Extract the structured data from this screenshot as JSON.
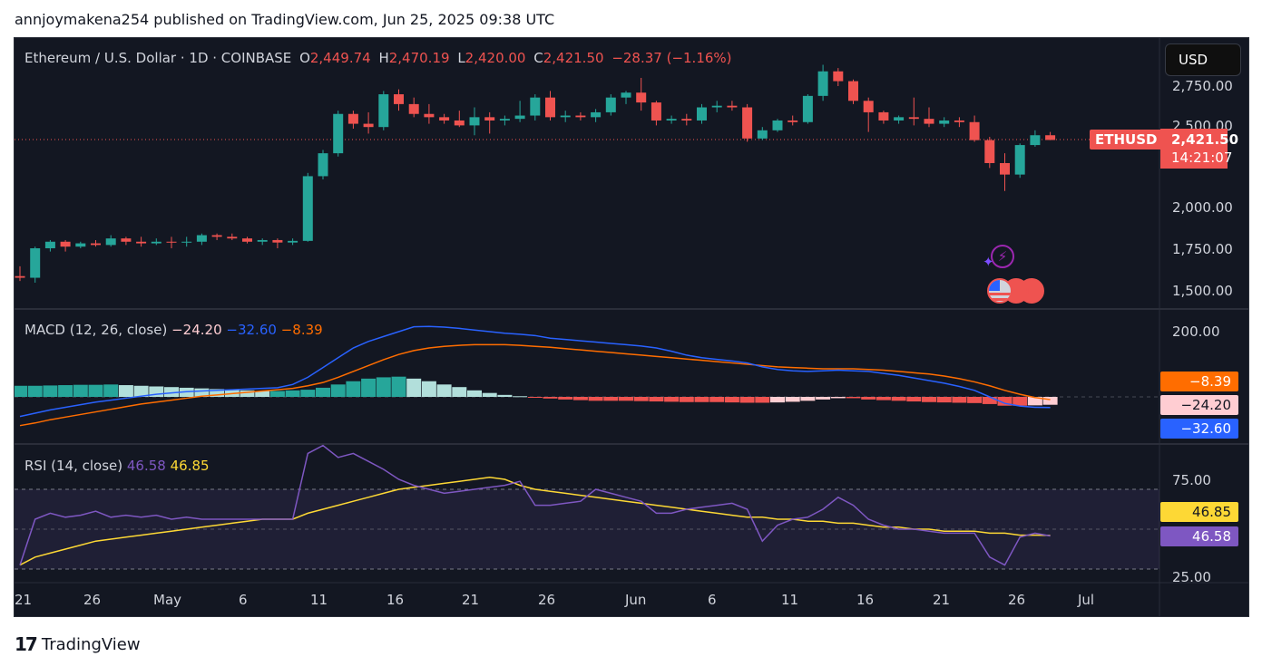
{
  "caption": "annjoymakena254 published on TradingView.com, Jun 25, 2025 09:38 UTC",
  "footer": {
    "brand": "TradingView",
    "logo_icon": "tradingview-logo-icon"
  },
  "header": {
    "symbol": "Ethereum / U.S. Dollar · 1D · COINBASE",
    "open_label": "O",
    "open": "2,449.74",
    "high_label": "H",
    "high": "2,470.19",
    "low_label": "L",
    "low": "2,420.00",
    "close_label": "C",
    "close": "2,421.50",
    "change": "−28.37 (−1.16%)",
    "currency_button": "USD"
  },
  "price_axis": [
    "2,750.00",
    "2,500.00",
    "2,000.00",
    "1,750.00",
    "1,500.00"
  ],
  "last_price": {
    "ticker": "ETHUSD",
    "price": "2,421.50",
    "countdown": "14:21:07"
  },
  "macd": {
    "title": "MACD (12, 26, close)",
    "hist": "−24.20",
    "macd": "−32.60",
    "signal": "−8.39",
    "axis": [
      "200.00"
    ],
    "badges": {
      "signal": "−8.39",
      "hist": "−24.20",
      "macd": "−32.60"
    }
  },
  "rsi": {
    "title": "RSI (14, close)",
    "rsi": "46.58",
    "ma": "46.85",
    "axis": [
      "75.00",
      "25.00"
    ],
    "badges": {
      "ma": "46.85",
      "rsi": "46.58"
    }
  },
  "time_axis": [
    "21",
    "26",
    "May",
    "6",
    "11",
    "16",
    "21",
    "26",
    "Jun",
    "6",
    "11",
    "16",
    "21",
    "26",
    "Jul"
  ],
  "colors": {
    "up": "#26a69a",
    "down": "#ef5350",
    "background": "#131722",
    "macd": "#2962ff",
    "signal": "#ff6d00",
    "rsi": "#7e57c2",
    "rsi_ma": "#fdd835"
  },
  "chart_data": {
    "type": "candlestick",
    "price_range": [
      1450,
      2950
    ],
    "candles": [
      {
        "o": 1590,
        "h": 1650,
        "l": 1560,
        "c": 1580
      },
      {
        "o": 1580,
        "h": 1770,
        "l": 1550,
        "c": 1760
      },
      {
        "o": 1760,
        "h": 1810,
        "l": 1740,
        "c": 1800
      },
      {
        "o": 1800,
        "h": 1810,
        "l": 1740,
        "c": 1770
      },
      {
        "o": 1770,
        "h": 1800,
        "l": 1760,
        "c": 1790
      },
      {
        "o": 1790,
        "h": 1810,
        "l": 1770,
        "c": 1780
      },
      {
        "o": 1780,
        "h": 1840,
        "l": 1770,
        "c": 1820
      },
      {
        "o": 1820,
        "h": 1830,
        "l": 1780,
        "c": 1800
      },
      {
        "o": 1800,
        "h": 1830,
        "l": 1770,
        "c": 1790
      },
      {
        "o": 1790,
        "h": 1820,
        "l": 1780,
        "c": 1800
      },
      {
        "o": 1800,
        "h": 1830,
        "l": 1760,
        "c": 1795
      },
      {
        "o": 1795,
        "h": 1830,
        "l": 1770,
        "c": 1800
      },
      {
        "o": 1800,
        "h": 1850,
        "l": 1780,
        "c": 1840
      },
      {
        "o": 1840,
        "h": 1850,
        "l": 1810,
        "c": 1830
      },
      {
        "o": 1830,
        "h": 1850,
        "l": 1810,
        "c": 1820
      },
      {
        "o": 1820,
        "h": 1830,
        "l": 1790,
        "c": 1800
      },
      {
        "o": 1800,
        "h": 1820,
        "l": 1780,
        "c": 1810
      },
      {
        "o": 1810,
        "h": 1820,
        "l": 1760,
        "c": 1795
      },
      {
        "o": 1795,
        "h": 1820,
        "l": 1780,
        "c": 1805
      },
      {
        "o": 1805,
        "h": 2220,
        "l": 1800,
        "c": 2200
      },
      {
        "o": 2200,
        "h": 2360,
        "l": 2180,
        "c": 2340
      },
      {
        "o": 2340,
        "h": 2600,
        "l": 2320,
        "c": 2580
      },
      {
        "o": 2580,
        "h": 2600,
        "l": 2490,
        "c": 2520
      },
      {
        "o": 2520,
        "h": 2590,
        "l": 2460,
        "c": 2500
      },
      {
        "o": 2500,
        "h": 2720,
        "l": 2480,
        "c": 2700
      },
      {
        "o": 2700,
        "h": 2730,
        "l": 2600,
        "c": 2640
      },
      {
        "o": 2640,
        "h": 2680,
        "l": 2560,
        "c": 2580
      },
      {
        "o": 2580,
        "h": 2640,
        "l": 2520,
        "c": 2560
      },
      {
        "o": 2560,
        "h": 2580,
        "l": 2520,
        "c": 2540
      },
      {
        "o": 2540,
        "h": 2600,
        "l": 2500,
        "c": 2510
      },
      {
        "o": 2510,
        "h": 2620,
        "l": 2450,
        "c": 2560
      },
      {
        "o": 2560,
        "h": 2590,
        "l": 2460,
        "c": 2540
      },
      {
        "o": 2540,
        "h": 2570,
        "l": 2510,
        "c": 2550
      },
      {
        "o": 2550,
        "h": 2660,
        "l": 2530,
        "c": 2570
      },
      {
        "o": 2570,
        "h": 2700,
        "l": 2540,
        "c": 2680
      },
      {
        "o": 2680,
        "h": 2720,
        "l": 2540,
        "c": 2560
      },
      {
        "o": 2560,
        "h": 2600,
        "l": 2530,
        "c": 2570
      },
      {
        "o": 2570,
        "h": 2590,
        "l": 2540,
        "c": 2560
      },
      {
        "o": 2560,
        "h": 2610,
        "l": 2530,
        "c": 2590
      },
      {
        "o": 2590,
        "h": 2700,
        "l": 2570,
        "c": 2680
      },
      {
        "o": 2680,
        "h": 2720,
        "l": 2640,
        "c": 2710
      },
      {
        "o": 2710,
        "h": 2800,
        "l": 2600,
        "c": 2650
      },
      {
        "o": 2650,
        "h": 2660,
        "l": 2510,
        "c": 2540
      },
      {
        "o": 2540,
        "h": 2570,
        "l": 2520,
        "c": 2550
      },
      {
        "o": 2550,
        "h": 2580,
        "l": 2510,
        "c": 2540
      },
      {
        "o": 2540,
        "h": 2640,
        "l": 2520,
        "c": 2620
      },
      {
        "o": 2620,
        "h": 2660,
        "l": 2590,
        "c": 2630
      },
      {
        "o": 2630,
        "h": 2660,
        "l": 2600,
        "c": 2620
      },
      {
        "o": 2620,
        "h": 2640,
        "l": 2410,
        "c": 2430
      },
      {
        "o": 2430,
        "h": 2500,
        "l": 2420,
        "c": 2480
      },
      {
        "o": 2480,
        "h": 2550,
        "l": 2470,
        "c": 2540
      },
      {
        "o": 2540,
        "h": 2570,
        "l": 2510,
        "c": 2530
      },
      {
        "o": 2530,
        "h": 2700,
        "l": 2520,
        "c": 2690
      },
      {
        "o": 2690,
        "h": 2880,
        "l": 2660,
        "c": 2840
      },
      {
        "o": 2840,
        "h": 2860,
        "l": 2750,
        "c": 2780
      },
      {
        "o": 2780,
        "h": 2790,
        "l": 2640,
        "c": 2660
      },
      {
        "o": 2660,
        "h": 2680,
        "l": 2470,
        "c": 2590
      },
      {
        "o": 2590,
        "h": 2600,
        "l": 2520,
        "c": 2540
      },
      {
        "o": 2540,
        "h": 2570,
        "l": 2520,
        "c": 2560
      },
      {
        "o": 2560,
        "h": 2680,
        "l": 2510,
        "c": 2550
      },
      {
        "o": 2550,
        "h": 2620,
        "l": 2500,
        "c": 2520
      },
      {
        "o": 2520,
        "h": 2560,
        "l": 2500,
        "c": 2540
      },
      {
        "o": 2540,
        "h": 2560,
        "l": 2500,
        "c": 2530
      },
      {
        "o": 2530,
        "h": 2570,
        "l": 2410,
        "c": 2420
      },
      {
        "o": 2420,
        "h": 2440,
        "l": 2250,
        "c": 2280
      },
      {
        "o": 2280,
        "h": 2340,
        "l": 2110,
        "c": 2210
      },
      {
        "o": 2210,
        "h": 2400,
        "l": 2190,
        "c": 2390
      },
      {
        "o": 2390,
        "h": 2480,
        "l": 2380,
        "c": 2450
      },
      {
        "o": 2450,
        "h": 2470,
        "l": 2420,
        "c": 2421
      }
    ],
    "macd_hist": [
      34,
      34,
      35,
      36,
      37,
      37,
      38,
      36,
      34,
      32,
      30,
      28,
      26,
      24,
      22,
      20,
      18,
      18,
      20,
      22,
      28,
      38,
      48,
      56,
      60,
      62,
      56,
      48,
      38,
      30,
      20,
      12,
      6,
      2,
      -2,
      -5,
      -8,
      -10,
      -12,
      -12,
      -12,
      -13,
      -14,
      -15,
      -16,
      -16,
      -16,
      -17,
      -18,
      -18,
      -17,
      -15,
      -12,
      -8,
      -4,
      -4,
      -8,
      -10,
      -12,
      -14,
      -16,
      -17,
      -18,
      -19,
      -22,
      -27,
      -27,
      -26,
      -24.2
    ],
    "macd_line": [
      -60,
      -50,
      -40,
      -32,
      -24,
      -16,
      -10,
      -4,
      2,
      8,
      12,
      16,
      18,
      20,
      22,
      24,
      26,
      28,
      38,
      60,
      90,
      120,
      150,
      170,
      185,
      200,
      215,
      216,
      214,
      210,
      205,
      200,
      195,
      192,
      188,
      180,
      176,
      172,
      168,
      164,
      160,
      156,
      150,
      140,
      128,
      120,
      115,
      110,
      104,
      92,
      84,
      80,
      78,
      80,
      82,
      80,
      78,
      72,
      66,
      58,
      50,
      42,
      32,
      20,
      0,
      -20,
      -28,
      -32,
      -32.6
    ],
    "signal_line": [
      -88,
      -80,
      -70,
      -62,
      -54,
      -46,
      -38,
      -30,
      -22,
      -16,
      -10,
      -4,
      2,
      6,
      10,
      14,
      18,
      22,
      26,
      34,
      44,
      60,
      78,
      96,
      114,
      130,
      142,
      150,
      155,
      158,
      160,
      160,
      160,
      158,
      155,
      152,
      148,
      144,
      140,
      136,
      132,
      128,
      124,
      120,
      116,
      112,
      108,
      104,
      100,
      96,
      92,
      90,
      88,
      86,
      86,
      86,
      84,
      82,
      78,
      74,
      70,
      64,
      56,
      46,
      34,
      20,
      8,
      -2,
      -8.39
    ],
    "rsi_line": [
      32,
      55,
      58,
      56,
      57,
      59,
      56,
      57,
      56,
      57,
      55,
      56,
      55,
      55,
      55,
      55,
      55,
      55,
      55,
      88,
      92,
      86,
      88,
      84,
      80,
      75,
      72,
      70,
      68,
      69,
      70,
      71,
      72,
      74,
      62,
      62,
      63,
      64,
      70,
      68,
      66,
      64,
      58,
      58,
      60,
      61,
      62,
      63,
      60,
      44,
      52,
      55,
      56,
      60,
      66,
      62,
      55,
      52,
      50,
      50,
      49,
      48,
      48,
      48,
      36,
      32,
      46,
      48,
      46.58
    ],
    "rsi_ma": [
      32,
      36,
      38,
      40,
      42,
      44,
      45,
      46,
      47,
      48,
      49,
      50,
      51,
      52,
      53,
      54,
      55,
      55,
      55,
      58,
      60,
      62,
      64,
      66,
      68,
      70,
      71,
      72,
      73,
      74,
      75,
      76,
      75,
      72,
      70,
      69,
      68,
      67,
      66,
      65,
      64,
      63,
      62,
      61,
      60,
      59,
      58,
      57,
      56,
      56,
      55,
      55,
      54,
      54,
      53,
      53,
      52,
      51,
      51,
      50,
      50,
      49,
      49,
      49,
      48,
      48,
      47,
      47,
      46.85
    ]
  }
}
